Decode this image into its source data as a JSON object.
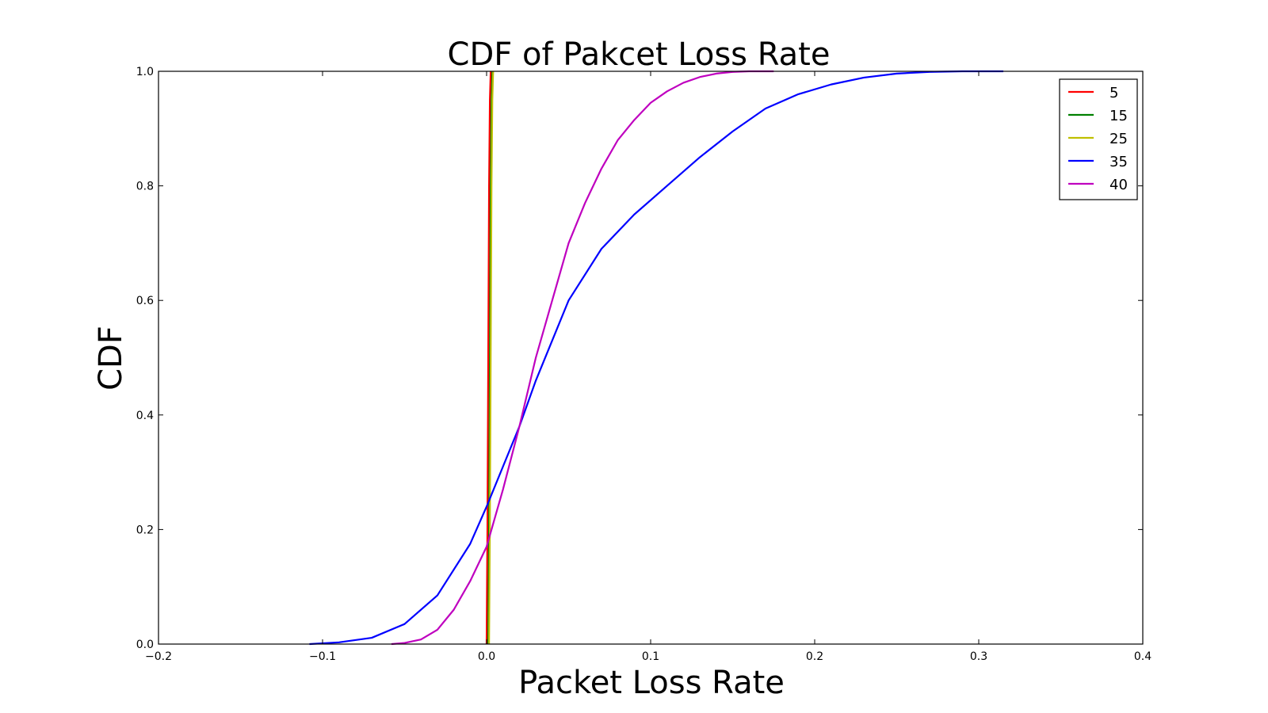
{
  "chart_data": {
    "type": "line",
    "title": "CDF of Pakcet Loss Rate",
    "xlabel": "Packet Loss Rate",
    "ylabel": "CDF",
    "xlim": [
      -0.2,
      0.4
    ],
    "ylim": [
      0.0,
      1.0
    ],
    "xticks": [
      -0.2,
      -0.1,
      0.0,
      0.1,
      0.2,
      0.3,
      0.4
    ],
    "xtick_labels": [
      "−0.2",
      "−0.1",
      "0.0",
      "0.1",
      "0.2",
      "0.3",
      "0.4"
    ],
    "yticks": [
      0.0,
      0.2,
      0.4,
      0.6,
      0.8,
      1.0
    ],
    "ytick_labels": [
      "0.0",
      "0.2",
      "0.4",
      "0.6",
      "0.8",
      "1.0"
    ],
    "grid": false,
    "legend_position": "top-right",
    "series": [
      {
        "name": "5",
        "color": "#ff0000",
        "x": [
          0.0,
          0.0005,
          0.001,
          0.0015,
          0.002,
          0.0025
        ],
        "y": [
          0.0,
          0.2,
          0.5,
          0.8,
          0.95,
          1.0
        ]
      },
      {
        "name": "15",
        "color": "#008000",
        "x": [
          0.001,
          0.0015,
          0.002,
          0.0025,
          0.003,
          0.0035
        ],
        "y": [
          0.0,
          0.2,
          0.5,
          0.8,
          0.95,
          1.0
        ]
      },
      {
        "name": "25",
        "color": "#bfbf00",
        "x": [
          0.0015,
          0.002,
          0.0025,
          0.003,
          0.0035,
          0.004
        ],
        "y": [
          0.0,
          0.2,
          0.5,
          0.8,
          0.95,
          1.0
        ]
      },
      {
        "name": "35",
        "color": "#0000ff",
        "x": [
          -0.108,
          -0.09,
          -0.07,
          -0.05,
          -0.03,
          -0.01,
          0.0,
          0.01,
          0.02,
          0.03,
          0.05,
          0.07,
          0.09,
          0.11,
          0.13,
          0.15,
          0.17,
          0.19,
          0.21,
          0.23,
          0.25,
          0.27,
          0.29,
          0.315
        ],
        "y": [
          0.0,
          0.003,
          0.011,
          0.035,
          0.085,
          0.175,
          0.24,
          0.31,
          0.38,
          0.46,
          0.6,
          0.69,
          0.75,
          0.8,
          0.85,
          0.895,
          0.935,
          0.96,
          0.977,
          0.989,
          0.996,
          0.999,
          1.0,
          1.0
        ]
      },
      {
        "name": "40",
        "color": "#bf00bf",
        "x": [
          -0.058,
          -0.05,
          -0.04,
          -0.03,
          -0.02,
          -0.01,
          0.0,
          0.01,
          0.02,
          0.03,
          0.04,
          0.05,
          0.06,
          0.07,
          0.08,
          0.09,
          0.1,
          0.11,
          0.12,
          0.13,
          0.14,
          0.15,
          0.16,
          0.175
        ],
        "y": [
          0.0,
          0.002,
          0.008,
          0.025,
          0.06,
          0.11,
          0.17,
          0.27,
          0.38,
          0.5,
          0.6,
          0.7,
          0.77,
          0.83,
          0.88,
          0.915,
          0.945,
          0.965,
          0.98,
          0.99,
          0.996,
          0.999,
          1.0,
          1.0
        ]
      }
    ]
  }
}
